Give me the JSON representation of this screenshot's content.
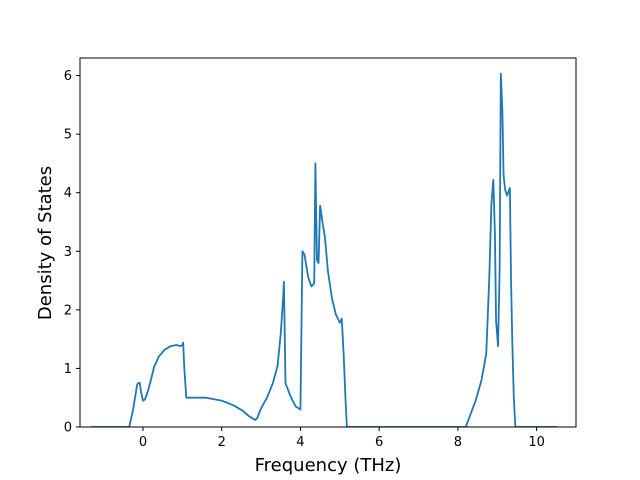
{
  "chart_data": {
    "type": "line",
    "xlabel": "Frequency (THz)",
    "ylabel": "Density of States",
    "xlim": [
      -1.6,
      11.0
    ],
    "ylim": [
      0,
      6.3
    ],
    "xticks": [
      0,
      2,
      4,
      6,
      8,
      10
    ],
    "xtick_labels": [
      "0",
      "2",
      "4",
      "6",
      "8",
      "10"
    ],
    "yticks": [
      0,
      1,
      2,
      3,
      4,
      5,
      6
    ],
    "ytick_labels": [
      "0",
      "1",
      "2",
      "3",
      "4",
      "5",
      "6"
    ],
    "grid": false,
    "series": [
      {
        "color": "#1f77b4",
        "x": [
          -1.3,
          -0.35,
          -0.25,
          -0.15,
          -0.12,
          -0.08,
          -0.05,
          0.0,
          0.05,
          0.12,
          0.2,
          0.28,
          0.4,
          0.55,
          0.7,
          0.85,
          0.95,
          1.0,
          1.02,
          1.05,
          1.1,
          1.3,
          1.6,
          2.0,
          2.3,
          2.55,
          2.7,
          2.8,
          2.85,
          2.9,
          3.0,
          3.15,
          3.3,
          3.42,
          3.5,
          3.56,
          3.58,
          3.62,
          3.75,
          3.88,
          3.95,
          4.0,
          4.05,
          4.1,
          4.2,
          4.28,
          4.35,
          4.38,
          4.42,
          4.46,
          4.5,
          4.57,
          4.62,
          4.7,
          4.8,
          4.9,
          5.0,
          5.05,
          5.1,
          5.15,
          5.18,
          7.5,
          8.2,
          8.3,
          8.45,
          8.6,
          8.72,
          8.8,
          8.85,
          8.9,
          8.94,
          8.97,
          9.02,
          9.06,
          9.09,
          9.13,
          9.16,
          9.2,
          9.25,
          9.3,
          9.32,
          9.35,
          9.38,
          9.42,
          9.46,
          9.5,
          10.5
        ],
        "y": [
          0.0,
          0.0,
          0.3,
          0.72,
          0.75,
          0.75,
          0.6,
          0.45,
          0.47,
          0.6,
          0.8,
          1.02,
          1.2,
          1.32,
          1.38,
          1.4,
          1.38,
          1.4,
          1.44,
          1.0,
          0.5,
          0.5,
          0.5,
          0.45,
          0.37,
          0.27,
          0.18,
          0.14,
          0.12,
          0.15,
          0.32,
          0.5,
          0.75,
          1.05,
          1.6,
          2.2,
          2.48,
          0.75,
          0.52,
          0.35,
          0.32,
          0.3,
          3.0,
          2.95,
          2.55,
          2.4,
          2.45,
          4.5,
          2.85,
          2.8,
          3.78,
          3.45,
          3.25,
          2.65,
          2.2,
          1.92,
          1.78,
          1.85,
          1.2,
          0.4,
          0.0,
          0.0,
          0.0,
          0.18,
          0.45,
          0.8,
          1.25,
          2.6,
          3.8,
          4.22,
          3.3,
          1.8,
          1.38,
          2.7,
          6.03,
          5.4,
          4.3,
          4.05,
          3.95,
          4.05,
          4.08,
          2.5,
          1.5,
          0.5,
          0.0,
          0.0,
          0.0
        ]
      }
    ]
  }
}
